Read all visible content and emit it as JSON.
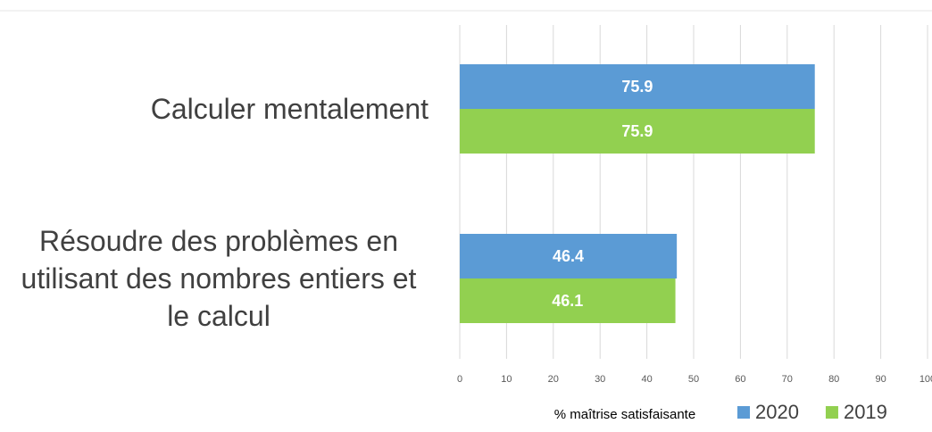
{
  "chart_data": {
    "type": "bar",
    "orientation": "horizontal",
    "categories": [
      "Calculer mentalement",
      "Résoudre des problèmes en utilisant des nombres entiers et le calcul"
    ],
    "series": [
      {
        "name": "2020",
        "color": "#5b9bd5",
        "values": [
          75.9,
          46.4
        ]
      },
      {
        "name": "2019",
        "color": "#92d050",
        "values": [
          75.9,
          46.1
        ]
      }
    ],
    "xlabel": "% maîtrise satisfaisante",
    "xlim": [
      0,
      100
    ],
    "xticks": [
      0,
      10,
      20,
      30,
      40,
      50,
      60,
      70,
      80,
      90,
      100
    ],
    "grid": true,
    "legend": "bottom"
  }
}
